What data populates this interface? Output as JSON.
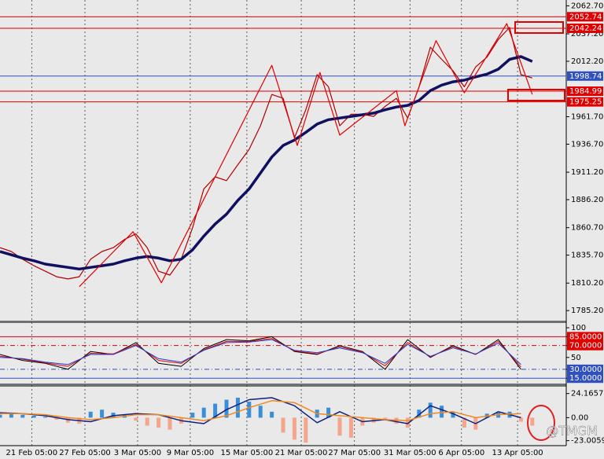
{
  "chart_data": [
    {
      "type": "line",
      "xlim": [
        0,
        100
      ],
      "ylim": [
        1776,
        2068
      ],
      "xticks": [
        {
          "value": 5.6,
          "label": "21 Feb 05:00"
        },
        {
          "value": 15,
          "label": "27 Feb 05:00"
        },
        {
          "value": 24.3,
          "label": "3 Mar 05:00"
        },
        {
          "value": 33.6,
          "label": "9 Mar 05:00"
        },
        {
          "value": 43.6,
          "label": "15 Mar 05:00"
        },
        {
          "value": 53.2,
          "label": "21 Mar 05:00"
        },
        {
          "value": 62.6,
          "label": "27 Mar 05:00"
        },
        {
          "value": 72.4,
          "label": "31 Mar 05:00"
        },
        {
          "value": 81.5,
          "label": "6 Apr 05:00"
        },
        {
          "value": 91.4,
          "label": "13 Apr 05:00"
        }
      ],
      "yticks": [
        {
          "value": 2062.7,
          "label": "2062.70"
        },
        {
          "value": 2037.2,
          "label": "2037.20"
        },
        {
          "value": 2012.2,
          "label": "2012.20"
        },
        {
          "value": 1961.7,
          "label": "1961.70"
        },
        {
          "value": 1936.7,
          "label": "1936.70"
        },
        {
          "value": 1911.2,
          "label": "1911.20"
        },
        {
          "value": 1886.2,
          "label": "1886.20"
        },
        {
          "value": 1860.7,
          "label": "1860.70"
        },
        {
          "value": 1835.7,
          "label": "1835.70"
        },
        {
          "value": 1810.2,
          "label": "1810.20"
        },
        {
          "value": 1785.2,
          "label": "1785.20"
        }
      ],
      "levels": [
        {
          "value": 2052.74,
          "color": "#e00000"
        },
        {
          "value": 2042.24,
          "color": "#e00000"
        },
        {
          "value": 1998.74,
          "color": "#3050c0"
        },
        {
          "value": 1984.99,
          "color": "#e00000"
        },
        {
          "value": 1975.25,
          "color": "#e00000"
        }
      ],
      "series": [
        {
          "type": "line",
          "color": "#b00000",
          "width": 1.2,
          "x": [
            0,
            2,
            4,
            6,
            8,
            10,
            12,
            14,
            16,
            18,
            20,
            22,
            24,
            26,
            28,
            30,
            32,
            34,
            36,
            38,
            40,
            42,
            44,
            46,
            48,
            50,
            52,
            54,
            56,
            58,
            60,
            62,
            64,
            66,
            68,
            70,
            72,
            74,
            76,
            78,
            80,
            82,
            84,
            86,
            88,
            90,
            92,
            94
          ],
          "values": [
            1842.5,
            1839,
            1832,
            1826,
            1821,
            1816,
            1814,
            1816,
            1832,
            1839,
            1842.5,
            1850,
            1855,
            1842.5,
            1821,
            1817.5,
            1832,
            1860.5,
            1896,
            1907,
            1903.5,
            1918,
            1932,
            1953.5,
            1982,
            1978.5,
            1942.5,
            1968,
            2000,
            1989,
            1953.5,
            1964,
            1964,
            1962,
            1971,
            1978.5,
            1960.5,
            1989,
            2025,
            2014,
            2003.5,
            1989,
            2007,
            2016,
            2032,
            2043,
            2000,
            1997
          ]
        },
        {
          "type": "line",
          "color": "#101060",
          "width": 3.5,
          "x": [
            0,
            2,
            4,
            6,
            8,
            10,
            12,
            14,
            16,
            18,
            20,
            22,
            24,
            26,
            28,
            30,
            32,
            34,
            36,
            38,
            40,
            42,
            44,
            46,
            48,
            50,
            52,
            54,
            56,
            58,
            60,
            62,
            64,
            66,
            68,
            70,
            72,
            74,
            76,
            78,
            80,
            82,
            84,
            86,
            88,
            90,
            92,
            94
          ],
          "values": [
            1839,
            1836,
            1833,
            1830.5,
            1827.5,
            1826,
            1824.5,
            1823,
            1824.5,
            1826,
            1827.5,
            1830.5,
            1833,
            1834.5,
            1833,
            1830.5,
            1832,
            1840.5,
            1853,
            1864,
            1873,
            1885.5,
            1896,
            1910.5,
            1925,
            1935.5,
            1940.5,
            1947.5,
            1955,
            1959,
            1960.5,
            1962,
            1963.5,
            1965,
            1968,
            1970.5,
            1972,
            1976.5,
            1985.5,
            1990.5,
            1993.5,
            1995,
            1998,
            2000.5,
            2005,
            2014,
            2016.5,
            2012
          ]
        },
        {
          "type": "line",
          "color": "#e00000",
          "width": 1.2,
          "x": [
            14,
            23.5,
            28.5,
            48,
            52.5,
            56.5,
            60,
            70,
            71.5,
            77,
            82,
            89.5,
            94
          ],
          "values": [
            1807,
            1857,
            1810.5,
            2008.5,
            1935.5,
            2002,
            1945,
            1985.5,
            1953.5,
            2031,
            1983.5,
            2046.5,
            1982
          ]
        }
      ]
    },
    {
      "type": "line",
      "xlim": [
        0,
        100
      ],
      "ylim": [
        6,
        108
      ],
      "yticks": [
        100,
        {
          "value": 85,
          "label": "85.0000",
          "color": "#e00000"
        },
        {
          "value": 70,
          "label": "70.0000",
          "color": "#e00000"
        },
        50,
        {
          "value": 30,
          "label": "30.0000",
          "color": "#3050c0"
        },
        {
          "value": 15,
          "label": "15.0000",
          "color": "#3050c0"
        }
      ],
      "series": [
        {
          "type": "line",
          "color": "#000000",
          "width": 1,
          "x": [
            0,
            4,
            8,
            12,
            16,
            20,
            24,
            28,
            32,
            36,
            40,
            44,
            48,
            52,
            56,
            60,
            64,
            68,
            72,
            76,
            80,
            84,
            88,
            92
          ],
          "values": [
            55,
            45,
            40,
            30,
            60,
            55,
            75,
            40,
            35,
            65,
            80,
            78,
            85,
            60,
            55,
            70,
            60,
            30,
            80,
            50,
            70,
            55,
            80,
            30
          ]
        },
        {
          "type": "line",
          "color": "#e00000",
          "width": 1,
          "x": [
            0,
            4,
            8,
            12,
            16,
            20,
            24,
            28,
            32,
            36,
            40,
            44,
            48,
            52,
            56,
            60,
            64,
            68,
            72,
            76,
            80,
            84,
            88,
            92
          ],
          "values": [
            52,
            47,
            41,
            35,
            57,
            56,
            72,
            45,
            40,
            63,
            77,
            77,
            82,
            61,
            56,
            68,
            59,
            36,
            75,
            51,
            68,
            55,
            77,
            34
          ]
        },
        {
          "type": "line",
          "color": "#2040d0",
          "width": 1,
          "x": [
            0,
            4,
            8,
            12,
            16,
            20,
            24,
            28,
            32,
            36,
            40,
            44,
            48,
            52,
            56,
            60,
            64,
            68,
            72,
            76,
            80,
            84,
            88,
            92
          ],
          "values": [
            50,
            48,
            42,
            38,
            55,
            55,
            70,
            48,
            42,
            62,
            75,
            76,
            80,
            62,
            58,
            66,
            58,
            40,
            72,
            52,
            66,
            56,
            74,
            38
          ]
        }
      ]
    },
    {
      "type": "bar",
      "xlim": [
        0,
        100
      ],
      "ylim": [
        -28,
        31
      ],
      "yticks": [
        24.1657,
        {
          "value": 0,
          "label": "0.00"
        },
        -23.0059
      ],
      "series": [
        {
          "type": "bar",
          "color": "#3a8fd8",
          "negative_color": "#f4a58a",
          "x": [
            0,
            2,
            4,
            6,
            8,
            10,
            12,
            14,
            16,
            18,
            20,
            22,
            24,
            26,
            28,
            30,
            32,
            34,
            36,
            38,
            40,
            42,
            44,
            46,
            48,
            50,
            52,
            54,
            56,
            58,
            60,
            62,
            64,
            66,
            68,
            70,
            72,
            74,
            76,
            78,
            80,
            82,
            84,
            86,
            88,
            90,
            92,
            94
          ],
          "values": [
            3,
            4,
            3,
            2,
            1,
            -2,
            -5,
            -6,
            6,
            8,
            5,
            3,
            -3,
            -8,
            -10,
            -12,
            -6,
            5,
            10,
            14,
            18,
            20,
            16,
            12,
            6,
            -15,
            -22,
            -25,
            8,
            10,
            -18,
            -20,
            -8,
            -5,
            -3,
            -6,
            -10,
            8,
            15,
            12,
            6,
            -10,
            -12,
            4,
            5,
            6,
            -4,
            -8
          ]
        },
        {
          "type": "line",
          "color": "#102080",
          "width": 1.5,
          "x": [
            0,
            4,
            8,
            12,
            16,
            20,
            24,
            28,
            32,
            36,
            40,
            44,
            48,
            52,
            56,
            60,
            64,
            68,
            72,
            76,
            80,
            84,
            88,
            92
          ],
          "values": [
            5,
            4,
            2,
            -2,
            -4,
            2,
            4,
            3,
            -3,
            -6,
            8,
            18,
            20,
            12,
            -5,
            6,
            -4,
            -2,
            -6,
            12,
            4,
            -6,
            6,
            0
          ]
        },
        {
          "type": "line",
          "color": "#f08a20",
          "width": 1.5,
          "x": [
            0,
            4,
            8,
            12,
            16,
            20,
            24,
            28,
            32,
            36,
            40,
            44,
            48,
            52,
            56,
            60,
            64,
            68,
            72,
            76,
            80,
            84,
            88,
            92
          ],
          "values": [
            4,
            4,
            3,
            0,
            -2,
            0,
            3,
            3,
            0,
            -3,
            2,
            10,
            17,
            15,
            4,
            2,
            0,
            -2,
            -3,
            4,
            6,
            0,
            3,
            4
          ]
        }
      ]
    }
  ],
  "watermark": "@TMGM"
}
